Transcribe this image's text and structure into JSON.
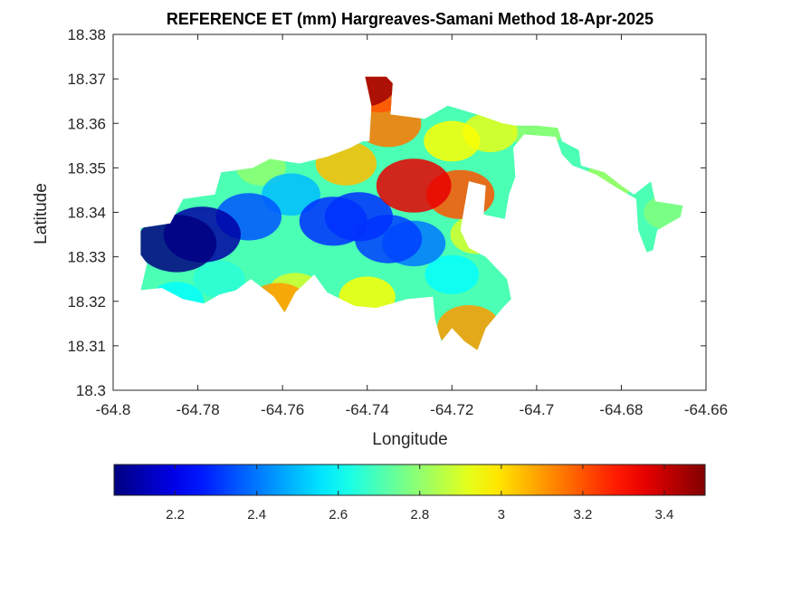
{
  "chart_data": {
    "type": "heatmap",
    "title": "REFERENCE ET (mm) Hargreaves-Samani Method  18-Apr-2025",
    "xlabel": "Longitude",
    "ylabel": "Latitude",
    "xlim": [
      -64.8,
      -64.66
    ],
    "ylim": [
      18.3,
      18.38
    ],
    "x_ticks": [
      -64.8,
      -64.78,
      -64.76,
      -64.74,
      -64.72,
      -64.7,
      -64.68,
      -64.66
    ],
    "y_ticks": [
      18.3,
      18.31,
      18.32,
      18.33,
      18.34,
      18.35,
      18.36,
      18.37,
      18.38
    ],
    "x_tick_labels": [
      "-64.8",
      "-64.78",
      "-64.76",
      "-64.74",
      "-64.72",
      "-64.7",
      "-64.68",
      "-64.66"
    ],
    "y_tick_labels": [
      "18.3",
      "18.31",
      "18.32",
      "18.33",
      "18.34",
      "18.35",
      "18.36",
      "18.37",
      "18.38"
    ],
    "colormap": "jet",
    "color_range": [
      2.05,
      3.5
    ],
    "colorbar": {
      "orientation": "horizontal",
      "placement": "bottom",
      "ticks": [
        2.2,
        2.4,
        2.6,
        2.8,
        3,
        3.2,
        3.4
      ],
      "tick_labels": [
        "2.2",
        "2.4",
        "2.6",
        "2.8",
        "3",
        "3.2",
        "3.4"
      ]
    },
    "grid": false,
    "region_outline": [
      [
        -64.7935,
        18.3305
      ],
      [
        -64.7935,
        18.3365
      ],
      [
        -64.7865,
        18.3375
      ],
      [
        -64.7835,
        18.343
      ],
      [
        -64.776,
        18.344
      ],
      [
        -64.7745,
        18.349
      ],
      [
        -64.767,
        18.35
      ],
      [
        -64.763,
        18.352
      ],
      [
        -64.756,
        18.351
      ],
      [
        -64.7495,
        18.3525
      ],
      [
        -64.744,
        18.3545
      ],
      [
        -64.741,
        18.356
      ],
      [
        -64.7395,
        18.356
      ],
      [
        -64.739,
        18.364
      ],
      [
        -64.7405,
        18.3705
      ],
      [
        -64.7355,
        18.3705
      ],
      [
        -64.734,
        18.369
      ],
      [
        -64.7345,
        18.362
      ],
      [
        -64.7265,
        18.361
      ],
      [
        -64.721,
        18.364
      ],
      [
        -64.714,
        18.362
      ],
      [
        -64.708,
        18.36
      ],
      [
        -64.705,
        18.3595
      ],
      [
        -64.7,
        18.3595
      ],
      [
        -64.695,
        18.359
      ],
      [
        -64.694,
        18.356
      ],
      [
        -64.69,
        18.354
      ],
      [
        -64.6895,
        18.3505
      ],
      [
        -64.684,
        18.349
      ],
      [
        -64.68,
        18.346
      ],
      [
        -64.677,
        18.344
      ],
      [
        -64.673,
        18.347
      ],
      [
        -64.672,
        18.3425
      ],
      [
        -64.6655,
        18.3415
      ],
      [
        -64.666,
        18.339
      ],
      [
        -64.6715,
        18.336
      ],
      [
        -64.6725,
        18.3315
      ],
      [
        -64.674,
        18.331
      ],
      [
        -64.676,
        18.336
      ],
      [
        -64.6765,
        18.343
      ],
      [
        -64.681,
        18.3455
      ],
      [
        -64.686,
        18.3485
      ],
      [
        -64.6915,
        18.3505
      ],
      [
        -64.694,
        18.353
      ],
      [
        -64.6955,
        18.357
      ],
      [
        -64.703,
        18.3575
      ],
      [
        -64.7055,
        18.3545
      ],
      [
        -64.705,
        18.348
      ],
      [
        -64.7065,
        18.344
      ],
      [
        -64.7075,
        18.3385
      ],
      [
        -64.7125,
        18.3395
      ],
      [
        -64.712,
        18.346
      ],
      [
        -64.716,
        18.347
      ],
      [
        -64.718,
        18.336
      ],
      [
        -64.716,
        18.332
      ],
      [
        -64.712,
        18.33
      ],
      [
        -64.707,
        18.325
      ],
      [
        -64.706,
        18.3205
      ],
      [
        -64.708,
        18.3185
      ],
      [
        -64.712,
        18.314
      ],
      [
        -64.714,
        18.309
      ],
      [
        -64.717,
        18.311
      ],
      [
        -64.72,
        18.314
      ],
      [
        -64.7225,
        18.311
      ],
      [
        -64.724,
        18.316
      ],
      [
        -64.7245,
        18.321
      ],
      [
        -64.7305,
        18.3205
      ],
      [
        -64.738,
        18.3185
      ],
      [
        -64.743,
        18.319
      ],
      [
        -64.7495,
        18.322
      ],
      [
        -64.7525,
        18.326
      ],
      [
        -64.757,
        18.322
      ],
      [
        -64.7595,
        18.3175
      ],
      [
        -64.762,
        18.321
      ],
      [
        -64.7675,
        18.325
      ],
      [
        -64.771,
        18.3225
      ],
      [
        -64.775,
        18.3215
      ],
      [
        -64.7785,
        18.3195
      ],
      [
        -64.7835,
        18.3205
      ],
      [
        -64.7885,
        18.323
      ],
      [
        -64.7935,
        18.3225
      ],
      [
        -64.792,
        18.3285
      ]
    ],
    "value_field_hotspots": [
      {
        "lon": -64.785,
        "lat": 18.333,
        "value": 2.05
      },
      {
        "lon": -64.779,
        "lat": 18.335,
        "value": 2.1
      },
      {
        "lon": -64.768,
        "lat": 18.339,
        "value": 2.35
      },
      {
        "lon": -64.748,
        "lat": 18.338,
        "value": 2.3
      },
      {
        "lon": -64.742,
        "lat": 18.339,
        "value": 2.3
      },
      {
        "lon": -64.735,
        "lat": 18.334,
        "value": 2.32
      },
      {
        "lon": -64.729,
        "lat": 18.333,
        "value": 2.4
      },
      {
        "lon": -64.758,
        "lat": 18.344,
        "value": 2.5
      },
      {
        "lon": -64.775,
        "lat": 18.325,
        "value": 2.65
      },
      {
        "lon": -64.72,
        "lat": 18.326,
        "value": 2.6
      },
      {
        "lon": -64.712,
        "lat": 18.323,
        "value": 2.7
      },
      {
        "lon": -64.765,
        "lat": 18.35,
        "value": 2.8
      },
      {
        "lon": -64.757,
        "lat": 18.322,
        "value": 2.9
      },
      {
        "lon": -64.74,
        "lat": 18.321,
        "value": 2.95
      },
      {
        "lon": -64.72,
        "lat": 18.356,
        "value": 2.95
      },
      {
        "lon": -64.711,
        "lat": 18.358,
        "value": 2.92
      },
      {
        "lon": -64.7,
        "lat": 18.358,
        "value": 2.8
      },
      {
        "lon": -64.683,
        "lat": 18.347,
        "value": 2.82
      },
      {
        "lon": -64.669,
        "lat": 18.34,
        "value": 2.78
      },
      {
        "lon": -64.745,
        "lat": 18.351,
        "value": 3.05
      },
      {
        "lon": -64.735,
        "lat": 18.36,
        "value": 3.15
      },
      {
        "lon": -64.729,
        "lat": 18.346,
        "value": 3.35
      },
      {
        "lon": -64.718,
        "lat": 18.344,
        "value": 3.2
      },
      {
        "lon": -64.737,
        "lat": 18.368,
        "value": 3.2
      },
      {
        "lon": -64.742,
        "lat": 18.37,
        "value": 3.45
      },
      {
        "lon": -64.761,
        "lat": 18.319,
        "value": 3.1
      },
      {
        "lon": -64.716,
        "lat": 18.314,
        "value": 3.1
      },
      {
        "lon": -64.714,
        "lat": 18.335,
        "value": 2.9
      },
      {
        "lon": -64.785,
        "lat": 18.32,
        "value": 2.6
      }
    ]
  }
}
